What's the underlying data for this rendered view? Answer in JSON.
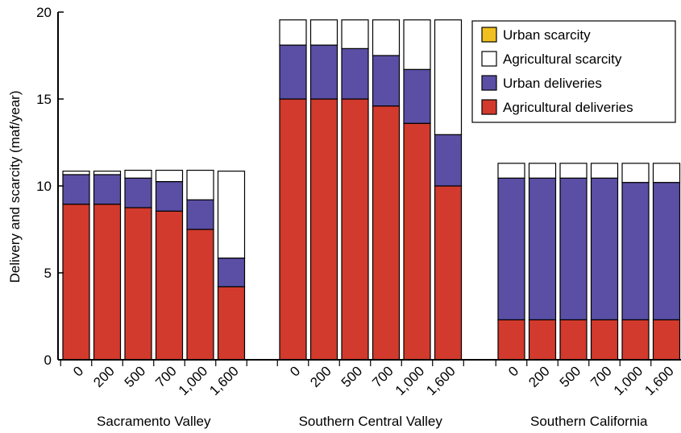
{
  "chart_data": {
    "type": "bar",
    "stacked": true,
    "ylabel": "Delivery and scarcity (maf/year)",
    "ylim": [
      0,
      20
    ],
    "yticks": [
      0,
      5,
      10,
      15,
      20
    ],
    "legend_position": "top-right",
    "grid": false,
    "legend": [
      {
        "name": "Urban scarcity",
        "color": "#f0c020"
      },
      {
        "name": "Agricultural scarcity",
        "color": "#ffffff"
      },
      {
        "name": "Urban deliveries",
        "color": "#5a4fa5"
      },
      {
        "name": "Agricultural deliveries",
        "color": "#d13a2c"
      }
    ],
    "groups": [
      {
        "name": "Sacramento Valley",
        "categories": [
          "0",
          "200",
          "500",
          "700",
          "1,000",
          "1,600"
        ],
        "agricultural_deliveries": [
          8.95,
          8.95,
          8.75,
          8.55,
          7.5,
          4.2
        ],
        "urban_deliveries": [
          1.7,
          1.7,
          1.7,
          1.7,
          1.7,
          1.65
        ],
        "agricultural_scarcity": [
          0.2,
          0.2,
          0.45,
          0.65,
          1.7,
          5.0
        ],
        "urban_scarcity": [
          0,
          0,
          0,
          0,
          0,
          0
        ]
      },
      {
        "name": "Southern Central Valley",
        "categories": [
          "0",
          "200",
          "500",
          "700",
          "1,000",
          "1,600"
        ],
        "agricultural_deliveries": [
          15.0,
          15.0,
          15.0,
          14.6,
          13.6,
          10.0
        ],
        "urban_deliveries": [
          3.1,
          3.1,
          2.9,
          2.9,
          3.1,
          2.95
        ],
        "agricultural_scarcity": [
          1.45,
          1.45,
          1.65,
          2.05,
          2.85,
          6.6
        ],
        "urban_scarcity": [
          0,
          0,
          0,
          0,
          0,
          0
        ]
      },
      {
        "name": "Southern California",
        "categories": [
          "0",
          "200",
          "500",
          "700",
          "1,000",
          "1,600"
        ],
        "agricultural_deliveries": [
          2.3,
          2.3,
          2.3,
          2.3,
          2.3,
          2.3
        ],
        "urban_deliveries": [
          8.15,
          8.15,
          8.15,
          8.15,
          7.9,
          7.9
        ],
        "agricultural_scarcity": [
          0.85,
          0.85,
          0.85,
          0.85,
          1.1,
          1.1
        ],
        "urban_scarcity": [
          0,
          0,
          0,
          0,
          0,
          0
        ]
      }
    ]
  }
}
